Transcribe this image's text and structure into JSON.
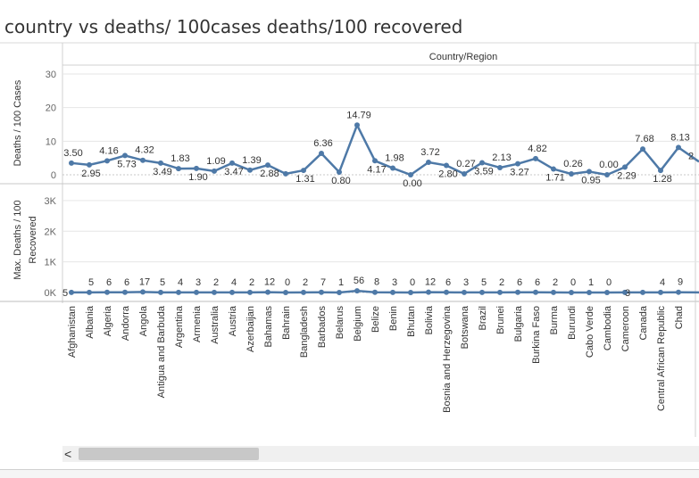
{
  "title": "country vs deaths/ 100cases  deaths/100 recovered",
  "header_label": "Country/Region",
  "scrollbar": {
    "left_arrow": "<"
  },
  "colors": {
    "line": "#4e79a7",
    "grid": "#e6e6e6",
    "axis_text": "#666666"
  },
  "chart_data": [
    {
      "type": "line",
      "ylabel": "Deaths / 100 Cases",
      "ylim": [
        0,
        30
      ],
      "yticks": [
        0,
        10,
        20,
        30
      ],
      "ytick_labels": [
        "0",
        "10",
        "20",
        "30"
      ],
      "categories": [
        "Afghanistan",
        "Albania",
        "Algeria",
        "Andorra",
        "Angola",
        "Antigua and Barbuda",
        "Argentina",
        "Armenia",
        "Australia",
        "Austria",
        "Azerbaijan",
        "Bahamas",
        "Bahrain",
        "Bangladesh",
        "Barbados",
        "Belarus",
        "Belgium",
        "Belize",
        "Benin",
        "Bhutan",
        "Bolivia",
        "Bosnia and Herzegovina",
        "Botswana",
        "Brazil",
        "Brunei",
        "Bulgaria",
        "Burkina Faso",
        "Burma",
        "Burundi",
        "Cabo Verde",
        "Cambodia",
        "Cameroon",
        "Canada",
        "Central African Republic",
        "Chad"
      ],
      "values": [
        3.5,
        2.95,
        4.16,
        5.73,
        4.32,
        3.49,
        1.83,
        1.9,
        1.09,
        3.47,
        1.39,
        2.88,
        0.3,
        1.31,
        6.36,
        0.8,
        14.79,
        4.17,
        1.98,
        0.0,
        3.72,
        2.8,
        0.27,
        3.59,
        2.13,
        3.27,
        4.82,
        1.71,
        0.26,
        0.95,
        0.0,
        2.29,
        7.68,
        1.28,
        8.13
      ],
      "labels": [
        "3.50",
        "2.95",
        "4.16",
        "5.73",
        "4.32",
        "3.49",
        "1.83",
        "1.90",
        "1.09",
        "3.47",
        "1.39",
        "2.88",
        "",
        "1.31",
        "6.36",
        "0.80",
        "14.79",
        "4.17",
        "1.98",
        "0.00",
        "3.72",
        "2.80",
        "0.27",
        "3.59",
        "2.13",
        "3.27",
        "4.82",
        "1.71",
        "0.26",
        "0.95",
        "0.00",
        "2.29",
        "7.68",
        "1.28",
        "8.13"
      ],
      "partial_label": "2"
    },
    {
      "type": "line",
      "ylabel": "Max. Deaths / 100 Recovered",
      "ylim": [
        0,
        3200
      ],
      "yticks": [
        0,
        1000,
        2000,
        3000
      ],
      "ytick_labels": [
        "0K",
        "1K",
        "2K",
        "3K"
      ],
      "values": [
        5,
        5,
        6,
        6,
        17,
        5,
        4,
        3,
        2,
        4,
        2,
        12,
        0,
        2,
        7,
        1,
        56,
        8,
        3,
        0,
        12,
        6,
        3,
        5,
        2,
        6,
        6,
        2,
        0,
        1,
        0,
        3,
        4,
        4,
        9
      ],
      "labels": [
        "5",
        "5",
        "6",
        "6",
        "17",
        "5",
        "4",
        "3",
        "2",
        "4",
        "2",
        "12",
        "0",
        "2",
        "7",
        "1",
        "56",
        "8",
        "3",
        "0",
        "12",
        "6",
        "3",
        "5",
        "2",
        "6",
        "6",
        "2",
        "0",
        "1",
        "0",
        "3",
        "",
        "4",
        "9"
      ]
    }
  ]
}
